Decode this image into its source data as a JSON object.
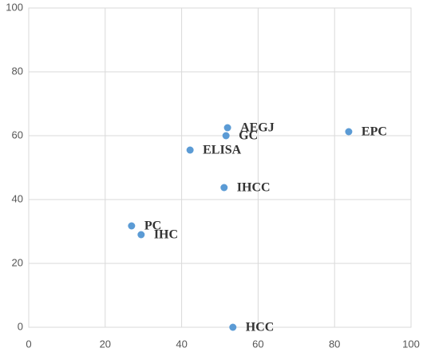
{
  "chart_data": {
    "type": "scatter",
    "x": [
      52.0,
      51.6,
      83.7,
      42.2,
      51.1,
      26.9,
      29.4,
      53.4
    ],
    "y": [
      62.5,
      60,
      61.25,
      55.5,
      43.75,
      31.75,
      29,
      0
    ],
    "point_labels": [
      "AEGJ",
      "GC",
      "EPC",
      "ELISA",
      "IHCC",
      "PC",
      "IHC",
      "HCC"
    ],
    "color": "#5b9bd5",
    "xlim": [
      0,
      100
    ],
    "xticks": [
      0,
      20,
      40,
      60,
      80,
      100
    ],
    "ylim": [
      0,
      100
    ],
    "yticks": [
      0,
      20,
      40,
      60,
      80,
      100
    ],
    "grid": true
  }
}
